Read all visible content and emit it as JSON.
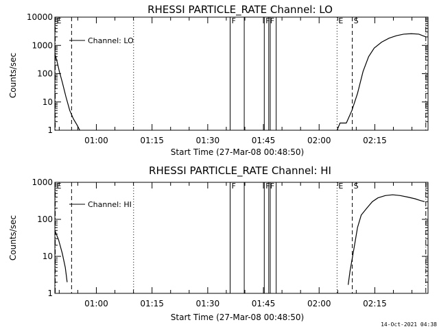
{
  "chart_data": [
    {
      "type": "line",
      "title": "RHESSI PARTICLE_RATE Channel: LO",
      "xlabel": "Start Time (27-Mar-08 00:48:50)",
      "ylabel": "Counts/sec",
      "yscale": "log",
      "ylim": [
        1,
        10000
      ],
      "xlim_minutes": [
        0.0,
        100.5
      ],
      "ytick_values": [
        1,
        10,
        100,
        1000,
        10000
      ],
      "yticks": [
        "1",
        "10",
        "100",
        "1000",
        "10000"
      ],
      "xtick_values": [
        11.17,
        26.17,
        41.17,
        56.17,
        71.17,
        86.17
      ],
      "xticks": [
        "01:00",
        "01:15",
        "01:30",
        "01:45",
        "02:00",
        "02:15"
      ],
      "legend": "Channel: LO",
      "series": [
        {
          "name": "Channel: LO",
          "segments": [
            [
              [
                0.0,
                500
              ],
              [
                0.5,
                300
              ],
              [
                1.2,
                120
              ],
              [
                2.0,
                50
              ],
              [
                3.0,
                15
              ],
              [
                4.0,
                5
              ],
              [
                5.0,
                2.5
              ],
              [
                6.0,
                1.5
              ],
              [
                6.7,
                1
              ]
            ],
            [
              [
                76.0,
                1
              ],
              [
                76.8,
                1.8
              ],
              [
                78.5,
                1.8
              ],
              [
                80.0,
                5
              ],
              [
                81.5,
                20
              ],
              [
                83.0,
                120
              ],
              [
                84.5,
                400
              ],
              [
                86.0,
                800
              ],
              [
                88.0,
                1300
              ],
              [
                90.0,
                1800
              ],
              [
                92.0,
                2200
              ],
              [
                94.0,
                2500
              ],
              [
                96.0,
                2600
              ],
              [
                98.0,
                2500
              ],
              [
                99.9,
                2000
              ]
            ]
          ]
        }
      ],
      "markers": [
        {
          "x": 0.1,
          "label": "E",
          "style": "dashdot"
        },
        {
          "x": 4.5,
          "label": "",
          "style": "dashed"
        },
        {
          "x": 21.2,
          "label": "",
          "style": "dotted"
        },
        {
          "x": 47.2,
          "label": "F",
          "style": "solid"
        },
        {
          "x": 51.0,
          "label": "",
          "style": "solid"
        },
        {
          "x": 56.4,
          "label": "F",
          "style": "solid"
        },
        {
          "x": 57.6,
          "label": "F",
          "style": "solid"
        },
        {
          "x": 58.0,
          "label": "",
          "style": "solid"
        },
        {
          "x": 59.6,
          "label": "",
          "style": "solid"
        },
        {
          "x": 76.0,
          "label": "E",
          "style": "dotted"
        },
        {
          "x": 80.1,
          "label": "S",
          "style": "dashed"
        },
        {
          "x": 99.9,
          "label": "",
          "style": "dashdot"
        }
      ]
    },
    {
      "type": "line",
      "title": "RHESSI PARTICLE_RATE Channel: HI",
      "xlabel": "Start Time (27-Mar-08 00:48:50)",
      "ylabel": "Counts/sec",
      "yscale": "log",
      "ylim": [
        1,
        1000
      ],
      "xlim_minutes": [
        0.0,
        100.5
      ],
      "ytick_values": [
        1,
        10,
        100,
        1000
      ],
      "yticks": [
        "1",
        "10",
        "100",
        "1000"
      ],
      "xtick_values": [
        11.17,
        26.17,
        41.17,
        56.17,
        71.17,
        86.17
      ],
      "xticks": [
        "01:00",
        "01:15",
        "01:30",
        "01:45",
        "02:00",
        "02:15"
      ],
      "legend": "Channel: HI",
      "series": [
        {
          "name": "Channel: HI",
          "segments": [
            [
              [
                0.0,
                50
              ],
              [
                1.0,
                28
              ],
              [
                2.0,
                12
              ],
              [
                2.8,
                5
              ],
              [
                3.3,
                2
              ]
            ],
            [
              [
                79.0,
                1.7
              ],
              [
                79.5,
                4
              ],
              [
                80.5,
                15
              ],
              [
                81.5,
                60
              ],
              [
                82.5,
                130
              ],
              [
                84.0,
                200
              ],
              [
                85.5,
                300
              ],
              [
                87.0,
                380
              ],
              [
                89.0,
                440
              ],
              [
                91.0,
                460
              ],
              [
                93.0,
                440
              ],
              [
                95.0,
                400
              ],
              [
                97.0,
                360
              ],
              [
                98.5,
                320
              ],
              [
                99.6,
                300
              ]
            ]
          ]
        }
      ],
      "markers": [
        {
          "x": 0.1,
          "label": "E",
          "style": "dashdot"
        },
        {
          "x": 4.5,
          "label": "",
          "style": "dashed"
        },
        {
          "x": 21.2,
          "label": "",
          "style": "dotted"
        },
        {
          "x": 47.2,
          "label": "F",
          "style": "solid"
        },
        {
          "x": 51.0,
          "label": "",
          "style": "solid"
        },
        {
          "x": 56.4,
          "label": "F",
          "style": "solid"
        },
        {
          "x": 57.6,
          "label": "F",
          "style": "solid"
        },
        {
          "x": 58.0,
          "label": "",
          "style": "solid"
        },
        {
          "x": 59.6,
          "label": "",
          "style": "solid"
        },
        {
          "x": 76.0,
          "label": "E",
          "style": "dotted"
        },
        {
          "x": 80.1,
          "label": "S",
          "style": "dashed"
        },
        {
          "x": 99.9,
          "label": "",
          "style": "dashdot"
        }
      ]
    }
  ],
  "footer": {
    "timestamp": "14-Oct-2021 04:38"
  }
}
